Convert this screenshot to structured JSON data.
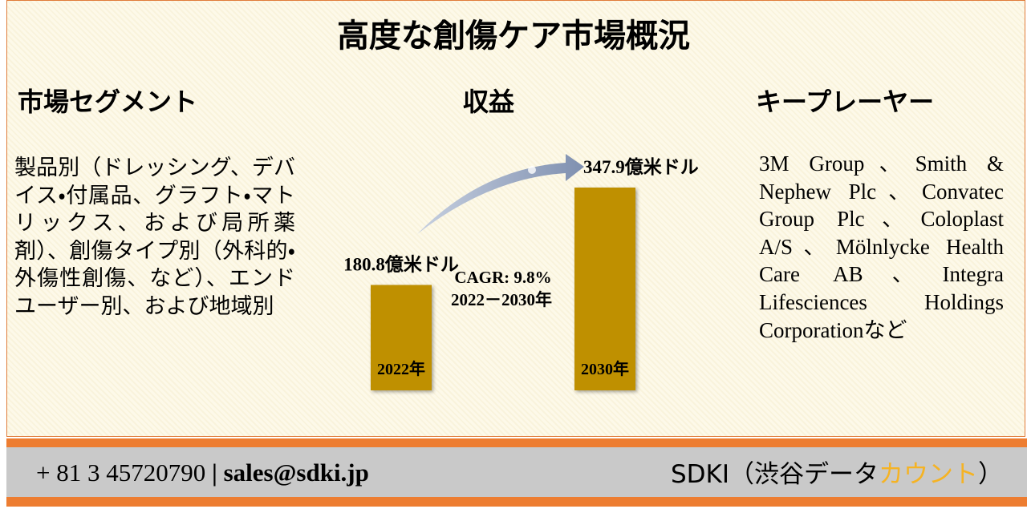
{
  "header": {
    "title": "高度な創傷ケア市場概況"
  },
  "segments": {
    "heading": "市場セグメント",
    "text": "製品別（ドレッシング、デバイス・付属品、グラフト・マトリックス、および局所薬剤）、創傷タイプ別（外科的・外傷性創傷、など）、エンドユーザー別、および地域別"
  },
  "revenue": {
    "heading": "収益",
    "cagr": "CAGR: 9.8%",
    "period": "2022－2030年"
  },
  "chart_data": {
    "type": "bar",
    "categories": [
      "2022年",
      "2030年"
    ],
    "values": [
      180.8,
      347.9
    ],
    "value_labels": [
      "180.8億米ドル",
      "347.9億米ドル"
    ],
    "color": "#bf9000"
  },
  "players": {
    "heading": "キープレーヤー",
    "text": "3M Group、Smith & Nephew Plc、Convatec Group Plc、Coloplast A/S、Mölnlycke Health Care AB、Integra Lifesciences Holdings Corporationなど"
  },
  "footer": {
    "phone": "+ 81 3 45720790",
    "separator": "|",
    "email": "sales@sdki.jp",
    "brand": "SDKI（渋谷データ",
    "brand_accent": "カウント",
    "brand_end": "）"
  }
}
